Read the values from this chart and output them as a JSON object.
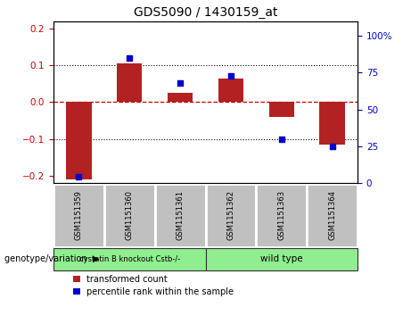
{
  "title": "GDS5090 / 1430159_at",
  "samples": [
    "GSM1151359",
    "GSM1151360",
    "GSM1151361",
    "GSM1151362",
    "GSM1151363",
    "GSM1151364"
  ],
  "bar_values": [
    -0.21,
    0.105,
    0.025,
    0.065,
    -0.04,
    -0.115
  ],
  "dot_values_pct": [
    4,
    85,
    68,
    73,
    30,
    25
  ],
  "ylim_left": [
    -0.22,
    0.22
  ],
  "ylim_right": [
    0,
    110
  ],
  "yticks_left": [
    -0.2,
    -0.1,
    0.0,
    0.1,
    0.2
  ],
  "yticks_right": [
    0,
    25,
    50,
    75,
    100
  ],
  "right_ytick_labels": [
    "0",
    "25",
    "50",
    "75",
    "100%"
  ],
  "bar_color": "#b22222",
  "dot_color": "#0000cd",
  "hline_color": "#cc0000",
  "dotline_color": "#000000",
  "tick_color_left": "#cc0000",
  "tick_color_right": "#0000cd",
  "sample_box_color": "#c0c0c0",
  "sample_box_edge": "#ffffff",
  "group1_label": "cystatin B knockout Cstb-/-",
  "group1_color": "#90ee90",
  "group2_label": "wild type",
  "group2_color": "#90ee90",
  "legend_bar_label": "transformed count",
  "legend_dot_label": "percentile rank within the sample",
  "genotype_label": "genotype/variation",
  "bar_width": 0.5
}
